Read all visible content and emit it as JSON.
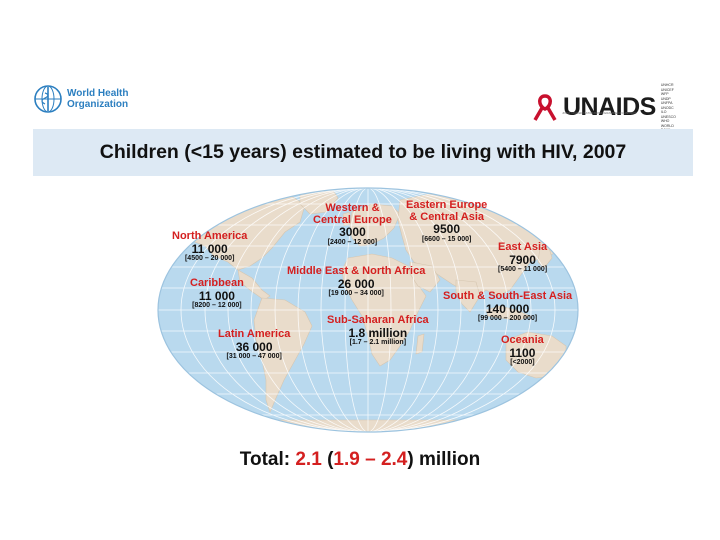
{
  "header": {
    "who_logo_line1": "World Health",
    "who_logo_line2": "Organization",
    "unaids_logo": "UNAIDS",
    "unaids_cosponsors": [
      "UNHCR",
      "UNICEF",
      "WFP",
      "UNDP",
      "UNFPA",
      "UNODC",
      "ILO",
      "UNESCO",
      "WHO",
      "WORLD BANK"
    ],
    "unaids_tagline": "JOINT UNITED NATIONS PROGRAMME ON HIV/AIDS"
  },
  "title": "Children (<15 years) estimated to be living with HIV, 2007",
  "regions": [
    {
      "name": "North America",
      "value": "11 000",
      "range": "[4500 – 20 000]"
    },
    {
      "name": "Caribbean",
      "value": "11 000",
      "range": "[8200 – 12 000]"
    },
    {
      "name": "Latin America",
      "value": "36 000",
      "range": "[31 000 – 47 000]"
    },
    {
      "name_line1": "Western &",
      "name_line2": "Central Europe",
      "value": "3000",
      "range": "[2400 – 12 000]"
    },
    {
      "name_line1": "Eastern Europe",
      "name_line2": "& Central Asia",
      "value": "9500",
      "range": "[6600 – 15 000]"
    },
    {
      "name": "Middle East & North Africa",
      "value": "26 000",
      "range": "[19 000 – 34 000]"
    },
    {
      "name": "Sub-Saharan Africa",
      "value": "1.8 million",
      "range": "[1.7 – 2.1 million]"
    },
    {
      "name": "East Asia",
      "value": "7900",
      "range": "[5400 – 11 000]"
    },
    {
      "name": "South & South-East Asia",
      "value": "140 000",
      "range": "[99 000 – 200 000]"
    },
    {
      "name": "Oceania",
      "value": "1100",
      "range": "[<2000]"
    }
  ],
  "total": {
    "label": "Total:",
    "estimate": "2.1",
    "open": "(",
    "low": "1.9",
    "dash": "–",
    "high": "2.4",
    "close": ")",
    "unit": "million"
  },
  "colors": {
    "ocean": "#b9d9ee",
    "land": "#e9dccb",
    "grid": "#ffffff",
    "accent_red": "#d42020",
    "title_bg": "#dde9f4"
  }
}
